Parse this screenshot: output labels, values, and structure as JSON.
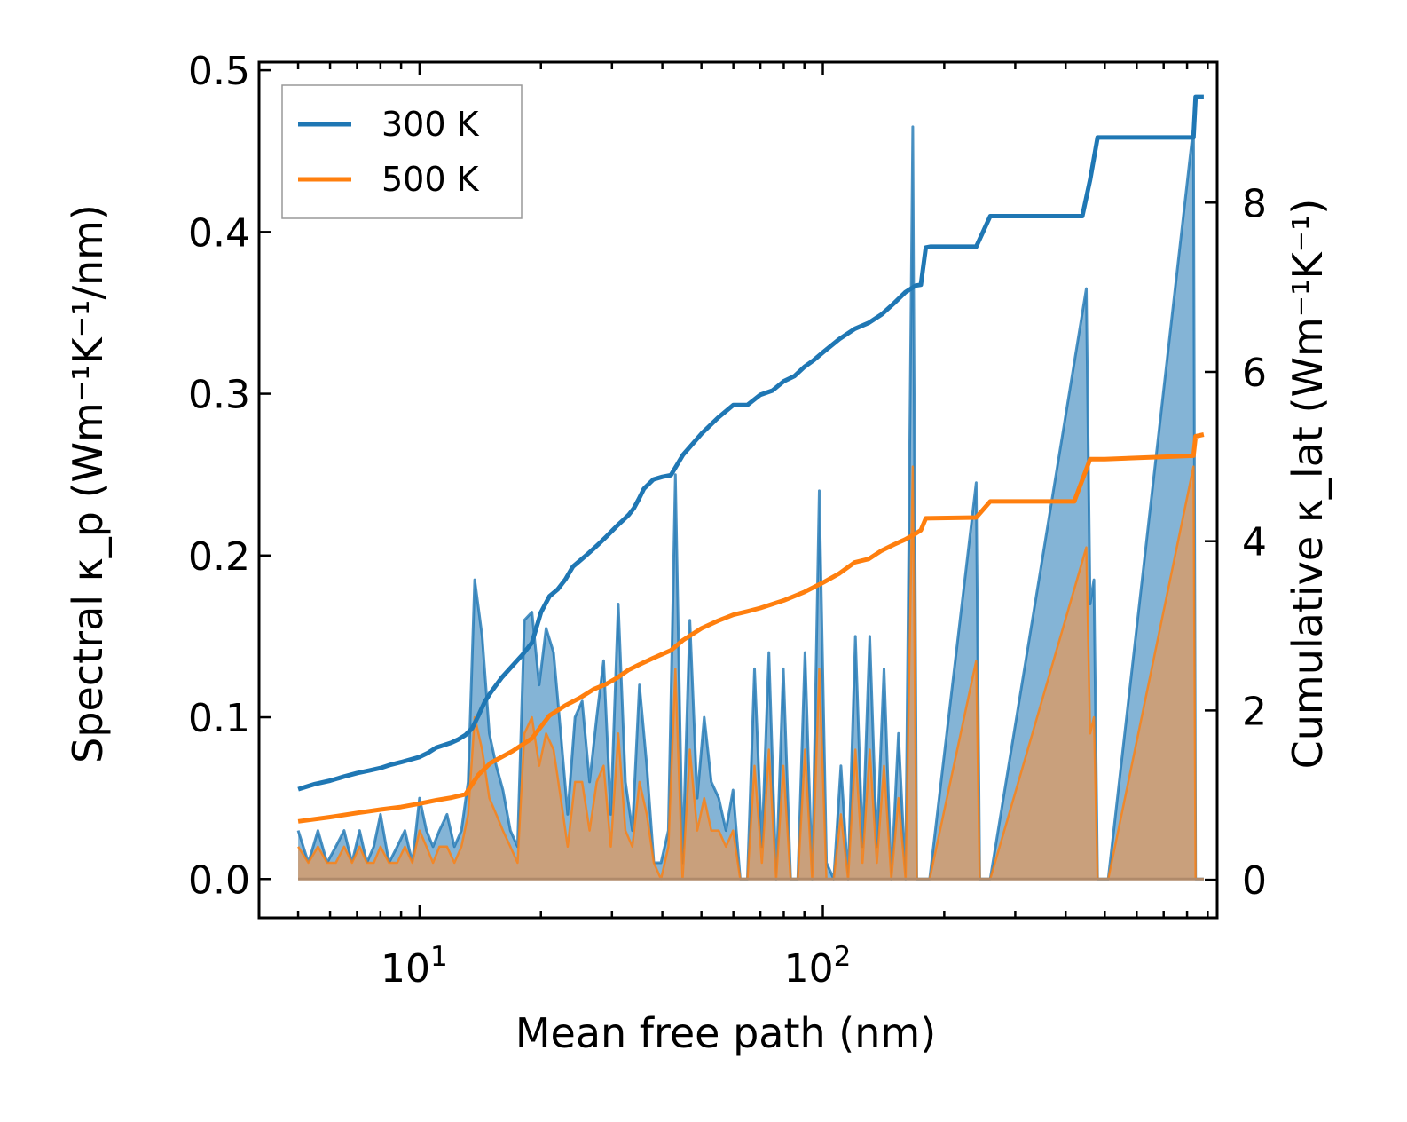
{
  "chart_data": {
    "type": "line",
    "xscale": "log",
    "xlabel": "Mean free path (nm)",
    "ylabel_left": "Spectral κ_p (Wm⁻¹K⁻¹/nm)",
    "ylabel_right": "Cumulative κ_lat (Wm⁻¹K⁻¹)",
    "xlim": [
      4.0,
      950
    ],
    "ylim_left": [
      -0.024,
      0.505
    ],
    "ylim_right": [
      -0.45,
      9.66
    ],
    "x_ticks": [
      {
        "base": "10",
        "exp": "1",
        "value": 10
      },
      {
        "base": "10",
        "exp": "2",
        "value": 100
      }
    ],
    "y_ticks_left": [
      "0.0",
      "0.1",
      "0.2",
      "0.3",
      "0.4",
      "0.5"
    ],
    "y_ticks_left_values": [
      0.0,
      0.1,
      0.2,
      0.3,
      0.4,
      0.5
    ],
    "y_ticks_right": [
      "0",
      "2",
      "4",
      "6",
      "8"
    ],
    "y_ticks_right_values": [
      0,
      2,
      4,
      6,
      8
    ],
    "legend": {
      "location": "top-left",
      "entries": [
        "300 K",
        "500 K"
      ]
    },
    "colors": {
      "300 K": "#1f77b4",
      "500 K": "#ff7f0e",
      "fill_500": "#c9a07c"
    },
    "series": [
      {
        "name": "300 K",
        "axis": "right",
        "kind": "cumulative",
        "x": [
          5,
          5.5,
          6,
          6.5,
          7,
          7.5,
          8,
          8.5,
          9,
          10,
          10.5,
          11,
          12,
          12.5,
          13,
          13.5,
          14,
          14.5,
          15,
          16,
          17,
          18,
          19,
          20,
          21,
          22,
          23,
          24,
          25,
          26,
          27,
          28,
          29,
          30,
          31,
          32,
          33,
          34,
          35,
          36,
          38,
          40,
          42,
          45,
          50,
          55,
          60,
          65,
          70,
          75,
          80,
          85,
          90,
          95,
          100,
          110,
          120,
          130,
          140,
          150,
          160,
          170,
          175,
          180,
          185,
          240,
          260,
          280,
          440,
          460,
          480,
          520,
          830,
          840,
          860,
          880
        ],
        "y": [
          1.07,
          1.13,
          1.17,
          1.22,
          1.26,
          1.29,
          1.32,
          1.36,
          1.39,
          1.45,
          1.5,
          1.56,
          1.62,
          1.66,
          1.71,
          1.79,
          1.94,
          2.1,
          2.21,
          2.39,
          2.53,
          2.66,
          2.8,
          3.16,
          3.35,
          3.43,
          3.55,
          3.7,
          3.77,
          3.84,
          3.91,
          3.98,
          4.05,
          4.12,
          4.19,
          4.25,
          4.31,
          4.39,
          4.5,
          4.62,
          4.73,
          4.76,
          4.78,
          5.02,
          5.27,
          5.46,
          5.61,
          5.61,
          5.73,
          5.78,
          5.89,
          5.95,
          6.06,
          6.14,
          6.23,
          6.39,
          6.51,
          6.58,
          6.68,
          6.81,
          6.94,
          7.02,
          7.03,
          7.47,
          7.48,
          7.48,
          7.84,
          7.84,
          7.84,
          8.27,
          8.77,
          8.77,
          8.77,
          9.25,
          9.25,
          9.25
        ]
      },
      {
        "name": "500 K",
        "axis": "right",
        "kind": "cumulative",
        "x": [
          5,
          6,
          7,
          8,
          9,
          10,
          11,
          12,
          13,
          14,
          15,
          17,
          19,
          21,
          23,
          25,
          27,
          29,
          31,
          33,
          35,
          38,
          42,
          45,
          50,
          55,
          60,
          65,
          70,
          80,
          90,
          100,
          110,
          120,
          130,
          140,
          150,
          160,
          170,
          175,
          180,
          240,
          260,
          420,
          460,
          500,
          830,
          840,
          880
        ],
        "y": [
          0.69,
          0.74,
          0.79,
          0.83,
          0.86,
          0.9,
          0.94,
          0.97,
          1.01,
          1.24,
          1.38,
          1.52,
          1.67,
          1.94,
          2.06,
          2.15,
          2.25,
          2.31,
          2.39,
          2.48,
          2.54,
          2.62,
          2.71,
          2.83,
          2.97,
          3.06,
          3.13,
          3.17,
          3.21,
          3.3,
          3.4,
          3.51,
          3.62,
          3.75,
          3.79,
          3.89,
          3.96,
          4.02,
          4.09,
          4.13,
          4.27,
          4.28,
          4.47,
          4.47,
          4.97,
          4.97,
          5.01,
          5.24,
          5.26
        ]
      },
      {
        "name": "300 K",
        "axis": "left",
        "kind": "spectral",
        "x": [
          5,
          5.3,
          5.6,
          5.9,
          6.2,
          6.5,
          6.8,
          7.1,
          7.4,
          7.7,
          8.0,
          8.4,
          8.8,
          9.2,
          9.6,
          10.0,
          10.4,
          10.8,
          11.2,
          11.7,
          12.2,
          12.7,
          13.2,
          13.7,
          14.3,
          14.9,
          15.5,
          16.1,
          16.8,
          17.5,
          18.2,
          19.0,
          19.8,
          20.6,
          21.5,
          22.4,
          23.3,
          24.3,
          25.3,
          26.4,
          27.5,
          28.6,
          29.8,
          31.1,
          32.4,
          33.7,
          35.1,
          36.6,
          38.1,
          39.7,
          41.4,
          43.1,
          44.9,
          46.8,
          48.8,
          50.8,
          52.9,
          55.2,
          57.5,
          59.9,
          62.4,
          65.0,
          67.7,
          70.6,
          73.5,
          76.6,
          79.8,
          83.2,
          86.7,
          90.3,
          94.1,
          98.0,
          102.1,
          106.4,
          110.9,
          115.5,
          120.4,
          125.4,
          130.7,
          136.1,
          141.8,
          147.8,
          154.0,
          160.4,
          167.1,
          171,
          174,
          177,
          180,
          184,
          240,
          245,
          250,
          255,
          260,
          450,
          460,
          470,
          480,
          490,
          500,
          510,
          830,
          840,
          850,
          860,
          870,
          880
        ],
        "y": [
          0.03,
          0.01,
          0.03,
          0.01,
          0.02,
          0.03,
          0.01,
          0.03,
          0.01,
          0.02,
          0.04,
          0.01,
          0.02,
          0.03,
          0.01,
          0.05,
          0.03,
          0.02,
          0.03,
          0.04,
          0.02,
          0.03,
          0.06,
          0.185,
          0.15,
          0.09,
          0.07,
          0.055,
          0.03,
          0.02,
          0.16,
          0.165,
          0.12,
          0.155,
          0.14,
          0.09,
          0.04,
          0.1,
          0.11,
          0.06,
          0.1,
          0.135,
          0.04,
          0.17,
          0.06,
          0.03,
          0.12,
          0.07,
          0.01,
          0.01,
          0.03,
          0.25,
          0.01,
          0.16,
          0.05,
          0.1,
          0.06,
          0.05,
          0.03,
          0.055,
          0.0,
          0.0,
          0.13,
          0.02,
          0.14,
          0.0,
          0.13,
          0.0,
          0.0,
          0.14,
          0.0,
          0.24,
          0.01,
          0.0,
          0.07,
          0.0,
          0.15,
          0.02,
          0.15,
          0.02,
          0.13,
          0.0,
          0.09,
          0.0,
          0.465,
          0.0,
          0.0,
          0.0,
          0.0,
          0.0,
          0.245,
          0.0,
          0.0,
          0.0,
          0.0,
          0.365,
          0.17,
          0.185,
          0.0,
          0.0,
          0.0,
          0.0,
          0.465,
          0.0,
          0.0,
          0.0,
          0.0,
          0.0
        ]
      },
      {
        "name": "500 K",
        "axis": "left",
        "kind": "spectral",
        "x": [
          5,
          5.3,
          5.6,
          5.9,
          6.2,
          6.5,
          6.8,
          7.1,
          7.4,
          7.7,
          8.0,
          8.4,
          8.8,
          9.2,
          9.6,
          10.0,
          10.4,
          10.8,
          11.2,
          11.7,
          12.2,
          12.7,
          13.2,
          13.7,
          14.3,
          14.9,
          15.5,
          16.1,
          16.8,
          17.5,
          18.2,
          19.0,
          19.8,
          20.6,
          21.5,
          22.4,
          23.3,
          24.3,
          25.3,
          26.4,
          27.5,
          28.6,
          29.8,
          31.1,
          32.4,
          33.7,
          35.1,
          36.6,
          38.1,
          39.7,
          41.4,
          43.1,
          44.9,
          46.8,
          48.8,
          50.8,
          52.9,
          55.2,
          57.5,
          59.9,
          62.4,
          65.0,
          67.7,
          70.6,
          73.5,
          76.6,
          79.8,
          83.2,
          86.7,
          90.3,
          94.1,
          98.0,
          102.1,
          106.4,
          110.9,
          115.5,
          120.4,
          125.4,
          130.7,
          136.1,
          141.8,
          147.8,
          154.0,
          160.4,
          167.1,
          171,
          174,
          177,
          180,
          184,
          240,
          245,
          250,
          255,
          260,
          450,
          460,
          470,
          480,
          490,
          500,
          510,
          830,
          840,
          850,
          860,
          870,
          880
        ],
        "y": [
          0.02,
          0.01,
          0.02,
          0.01,
          0.01,
          0.02,
          0.01,
          0.02,
          0.01,
          0.01,
          0.02,
          0.01,
          0.01,
          0.02,
          0.01,
          0.03,
          0.02,
          0.01,
          0.02,
          0.02,
          0.01,
          0.02,
          0.04,
          0.1,
          0.08,
          0.05,
          0.04,
          0.03,
          0.02,
          0.01,
          0.09,
          0.1,
          0.07,
          0.09,
          0.08,
          0.05,
          0.02,
          0.06,
          0.06,
          0.03,
          0.06,
          0.07,
          0.02,
          0.09,
          0.03,
          0.02,
          0.06,
          0.04,
          0.01,
          0.0,
          0.02,
          0.13,
          0.0,
          0.08,
          0.03,
          0.05,
          0.03,
          0.03,
          0.02,
          0.03,
          0.0,
          0.0,
          0.07,
          0.01,
          0.08,
          0.0,
          0.07,
          0.0,
          0.0,
          0.08,
          0.0,
          0.13,
          0.0,
          0.0,
          0.04,
          0.0,
          0.08,
          0.01,
          0.08,
          0.01,
          0.07,
          0.0,
          0.05,
          0.0,
          0.255,
          0.0,
          0.0,
          0.0,
          0.0,
          0.0,
          0.135,
          0.0,
          0.0,
          0.0,
          0.0,
          0.205,
          0.09,
          0.1,
          0.0,
          0.0,
          0.0,
          0.0,
          0.255,
          0.0,
          0.0,
          0.0,
          0.0,
          0.0
        ]
      }
    ]
  }
}
